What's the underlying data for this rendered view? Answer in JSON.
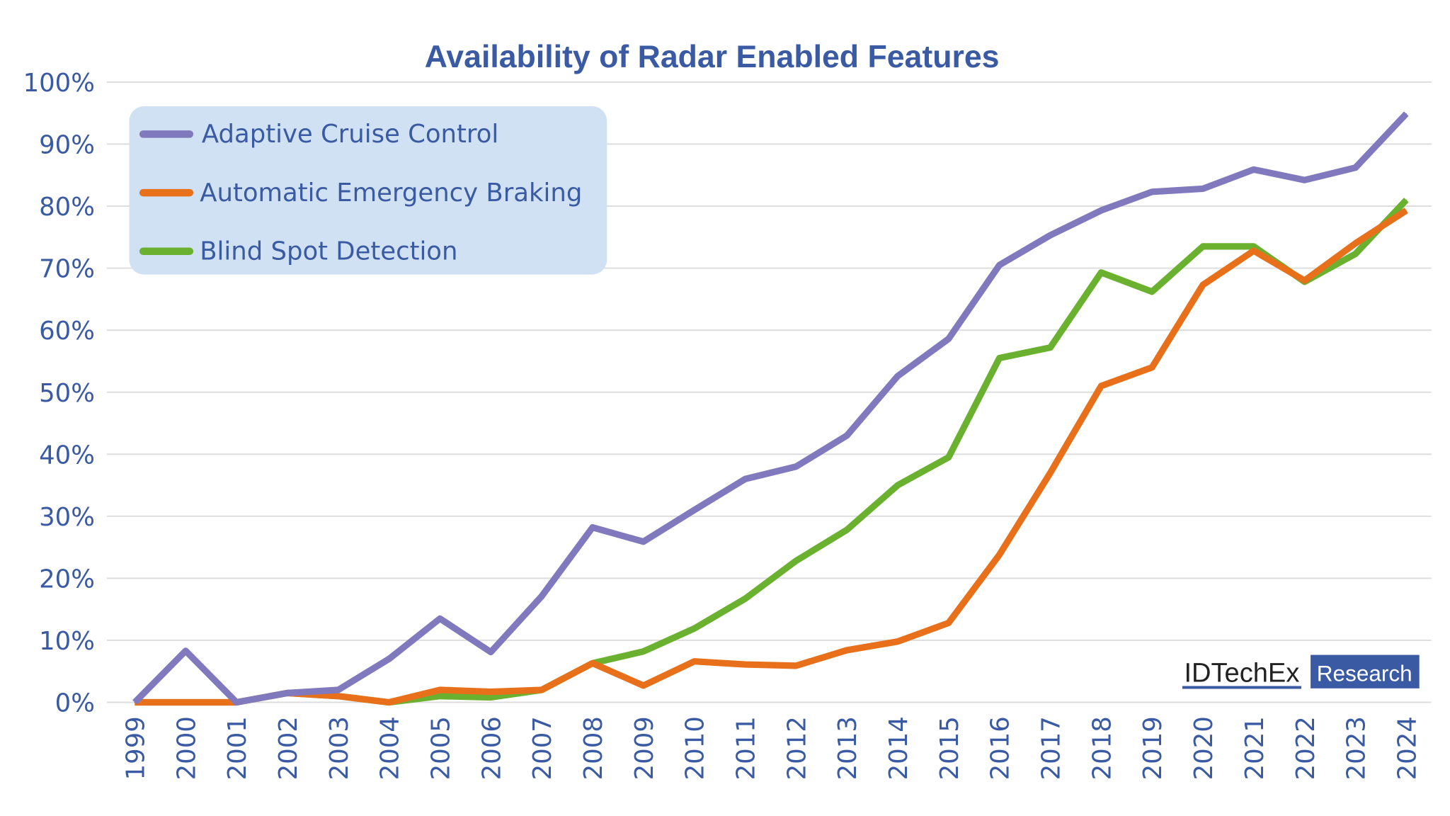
{
  "chart_data": {
    "type": "line",
    "title": "Availability of Radar Enabled Features",
    "xlabel": "",
    "ylabel": "",
    "ylim": [
      0,
      100
    ],
    "yticks": [
      "0%",
      "10%",
      "20%",
      "30%",
      "40%",
      "50%",
      "60%",
      "70%",
      "80%",
      "90%",
      "100%"
    ],
    "grid": true,
    "legend_position": "top-left",
    "categories": [
      "1999",
      "2000",
      "2001",
      "2002",
      "2003",
      "2004",
      "2005",
      "2006",
      "2007",
      "2008",
      "2009",
      "2010",
      "2011",
      "2012",
      "2013",
      "2014",
      "2015",
      "2016",
      "2017",
      "2018",
      "2019",
      "2020",
      "2021",
      "2022",
      "2023",
      "2024"
    ],
    "series": [
      {
        "name": "Adaptive Cruise Control",
        "color": "#8079bd",
        "values": [
          0,
          8.3,
          0,
          1.5,
          2,
          7,
          13.5,
          8.1,
          17.1,
          28.2,
          25.9,
          31,
          36,
          38,
          43,
          52.6,
          58.6,
          70.5,
          75.3,
          79.3,
          82.3,
          82.8,
          85.9,
          84.2,
          86.2,
          94.9
        ]
      },
      {
        "name": "Automatic Emergency Braking",
        "color": "#e8701a",
        "values": [
          0,
          0,
          0,
          1.5,
          1,
          0,
          2,
          1.7,
          2,
          6.3,
          2.7,
          6.6,
          6.1,
          5.9,
          8.4,
          9.8,
          12.8,
          23.8,
          37,
          51,
          54,
          67.3,
          72.8,
          68,
          74,
          79.3
        ]
      },
      {
        "name": "Blind Spot Detection",
        "color": "#6ab12f",
        "values": [
          0,
          0,
          0,
          1.5,
          1,
          0,
          1,
          0.8,
          2,
          6.3,
          8.2,
          11.9,
          16.7,
          22.8,
          27.8,
          35,
          39.5,
          55.5,
          57.2,
          69.3,
          66.2,
          73.5,
          73.5,
          67.8,
          72.3,
          81
        ]
      }
    ]
  },
  "logo": {
    "brand": "IDTechEx",
    "tag": "Research"
  },
  "colors": {
    "text": "#3a5ba3",
    "legend_bg": "#cfe1f3",
    "grid": "#dddddd"
  }
}
